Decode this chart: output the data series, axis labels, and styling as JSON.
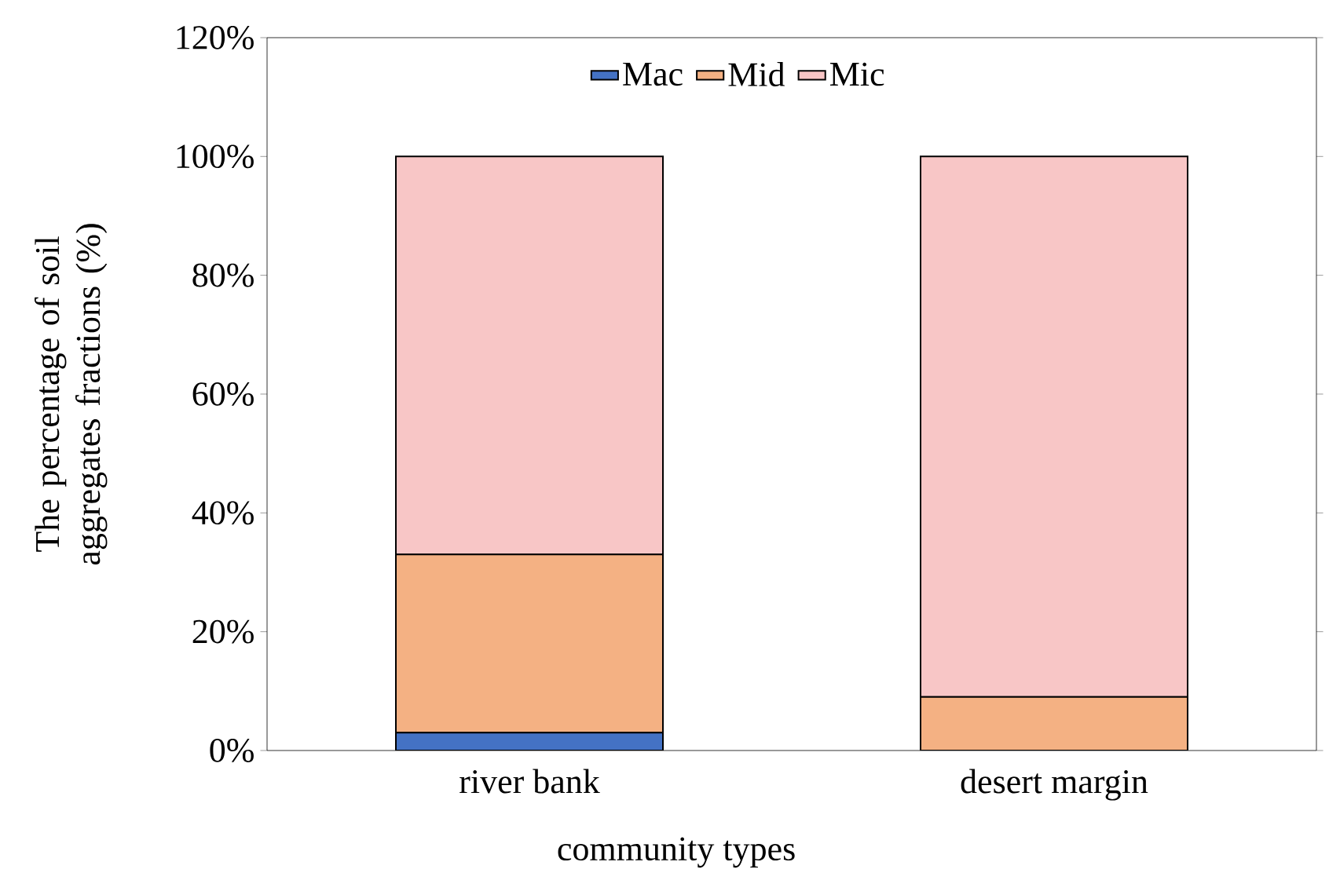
{
  "chart_data": {
    "type": "bar",
    "stacked": true,
    "ylabel": "The percentage of soil aggregates fractions (%)",
    "xlabel": "community types",
    "categories": [
      "river bank",
      "desert margin"
    ],
    "series": [
      {
        "name": "Mac",
        "color": "#4472c4",
        "values": [
          3,
          0
        ]
      },
      {
        "name": "Mid",
        "color": "#f4b183",
        "values": [
          30,
          9
        ]
      },
      {
        "name": "Mic",
        "color": "#f8c6c6",
        "values": [
          67,
          91
        ]
      }
    ],
    "ylim": [
      0,
      120
    ],
    "yticks": [
      {
        "value": 0,
        "label": "0%"
      },
      {
        "value": 20,
        "label": "20%"
      },
      {
        "value": 40,
        "label": "40%"
      },
      {
        "value": 60,
        "label": "60%"
      },
      {
        "value": 80,
        "label": "80%"
      },
      {
        "value": 100,
        "label": "100%"
      },
      {
        "value": 120,
        "label": "120%"
      }
    ],
    "legend": "top"
  }
}
